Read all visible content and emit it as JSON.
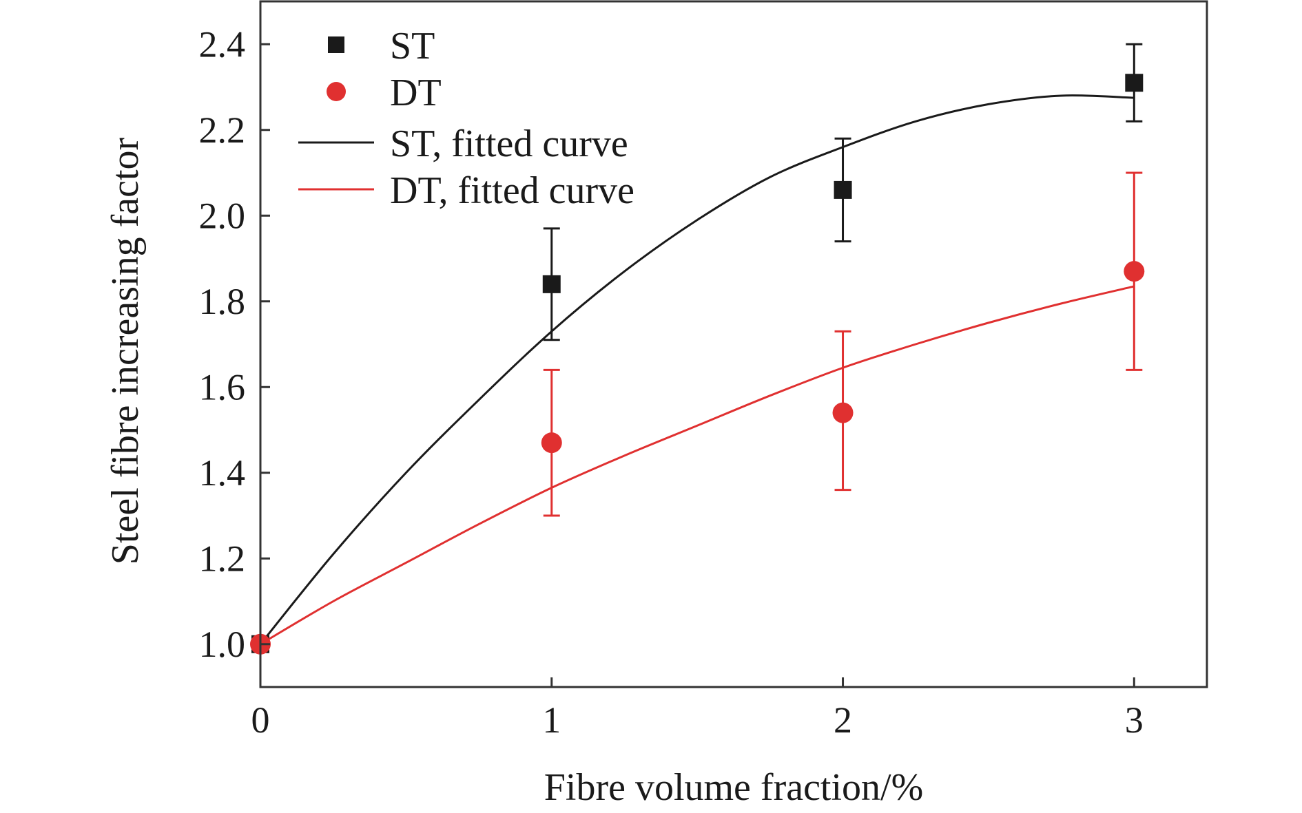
{
  "chart_data": {
    "type": "scatter",
    "xlabel": "Fibre volume fraction/%",
    "ylabel": "Steel fibre increasing factor",
    "xlim": [
      0,
      3.25
    ],
    "ylim": [
      0.9,
      2.5
    ],
    "xticks": [
      0,
      1,
      2,
      3
    ],
    "yticks": [
      1.0,
      1.2,
      1.4,
      1.6,
      1.8,
      2.0,
      2.2,
      2.4
    ],
    "xtick_labels": [
      "0",
      "1",
      "2",
      "3"
    ],
    "ytick_labels": [
      "1.0",
      "1.2",
      "1.4",
      "1.6",
      "1.8",
      "2.0",
      "2.2",
      "2.4"
    ],
    "grid": false,
    "legend_position": "top-left",
    "series": [
      {
        "name": "ST",
        "kind": "points",
        "marker": "square",
        "color": "#1a1a1a",
        "x": [
          0,
          1,
          2,
          3
        ],
        "y": [
          1.0,
          1.84,
          2.06,
          2.31
        ],
        "err_low": [
          0,
          1.71,
          1.94,
          2.22
        ],
        "err_high": [
          0,
          1.97,
          2.18,
          2.4
        ]
      },
      {
        "name": "DT",
        "kind": "points",
        "marker": "circle",
        "color": "#e03030",
        "x": [
          0,
          1,
          2,
          3
        ],
        "y": [
          1.0,
          1.47,
          1.54,
          1.87
        ],
        "err_low": [
          0,
          1.3,
          1.36,
          1.64
        ],
        "err_high": [
          0,
          1.64,
          1.73,
          2.1
        ]
      },
      {
        "name": "ST, fitted curve",
        "kind": "line",
        "color": "#1a1a1a",
        "x": [
          0,
          0.25,
          0.5,
          0.75,
          1.0,
          1.25,
          1.5,
          1.75,
          2.0,
          2.25,
          2.5,
          2.75,
          3.0
        ],
        "y": [
          1.0,
          1.21,
          1.4,
          1.57,
          1.73,
          1.87,
          1.99,
          2.09,
          2.16,
          2.22,
          2.26,
          2.28,
          2.275
        ]
      },
      {
        "name": "DT, fitted curve",
        "kind": "line",
        "color": "#e03030",
        "x": [
          0,
          0.25,
          0.5,
          0.75,
          1.0,
          1.25,
          1.5,
          1.75,
          2.0,
          2.25,
          2.5,
          2.75,
          3.0
        ],
        "y": [
          1.0,
          1.1,
          1.19,
          1.28,
          1.365,
          1.44,
          1.51,
          1.58,
          1.645,
          1.7,
          1.75,
          1.795,
          1.835
        ]
      }
    ]
  }
}
